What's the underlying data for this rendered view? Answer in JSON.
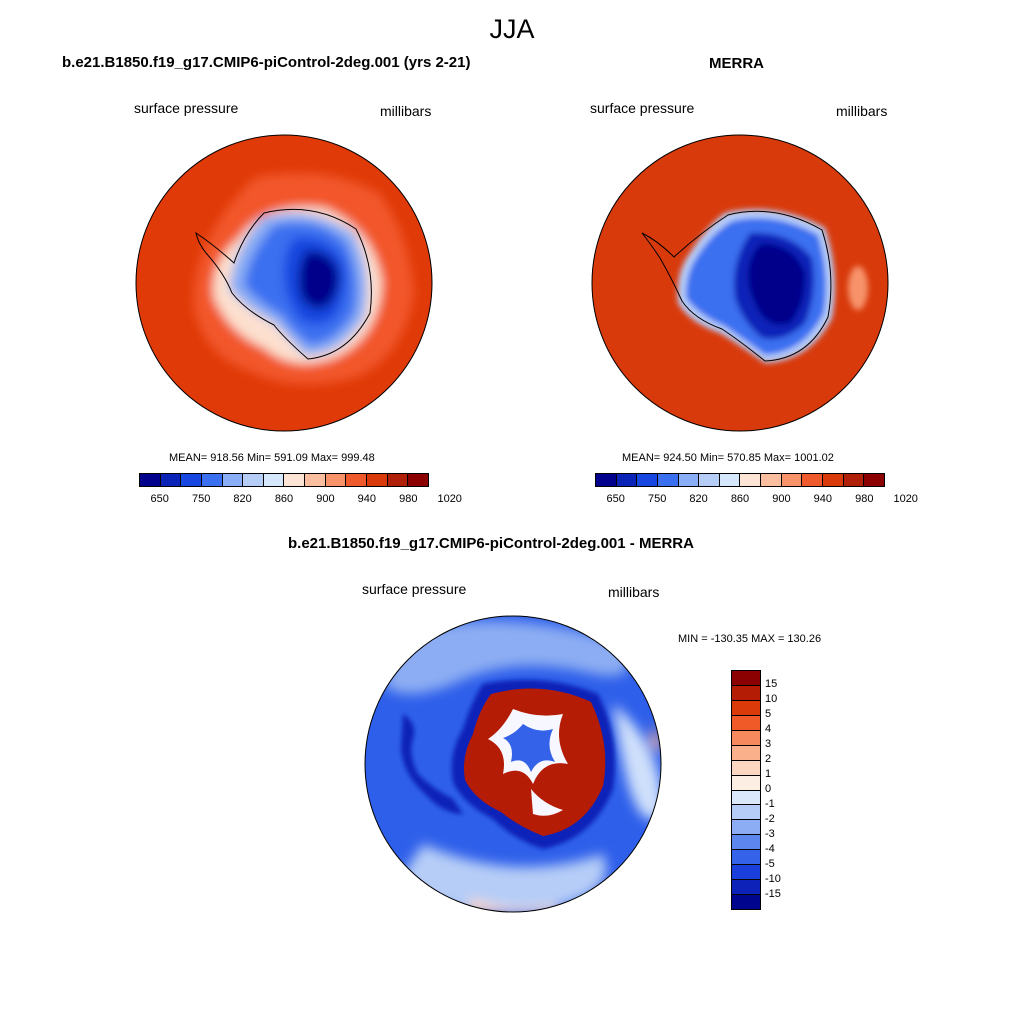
{
  "figure": {
    "title": "JJA"
  },
  "panels": {
    "left": {
      "title": "b.e21.B1850.f19_g17.CMIP6-piControl-2deg.001 (yrs 2-21)",
      "variable": "surface pressure",
      "units": "millibars",
      "stats": "MEAN= 918.56  Min= 591.09  Max= 999.48"
    },
    "right": {
      "title": "MERRA",
      "variable": "surface pressure",
      "units": "millibars",
      "stats": "MEAN= 924.50  Min= 570.85  Max= 1001.02"
    },
    "diff": {
      "title": "b.e21.B1850.f19_g17.CMIP6-piControl-2deg.001 - MERRA",
      "variable": "surface pressure",
      "units": "millibars",
      "stats": "MIN = -130.35 MAX = 130.26"
    }
  },
  "colorbar_abs": {
    "colors": [
      "#00008b",
      "#0b24b8",
      "#1747e0",
      "#3a6ff0",
      "#8aaef5",
      "#b6cdf8",
      "#d6e6fb",
      "#fde5d6",
      "#fbbfa0",
      "#f7926a",
      "#ef5a2c",
      "#d83a0c",
      "#b02008",
      "#8b0000"
    ],
    "tick_labels": [
      "650",
      "750",
      "820",
      "860",
      "900",
      "940",
      "980",
      "1020"
    ]
  },
  "colorbar_diff": {
    "colors": [
      "#8b0000",
      "#b41c06",
      "#da3a0a",
      "#f05a28",
      "#f7895e",
      "#fbb08c",
      "#fdd6c2",
      "#fdeee4",
      "#dbe8fb",
      "#b6cdf7",
      "#8cadf3",
      "#5d87ee",
      "#3462e8",
      "#1a3fdb",
      "#0c22b8",
      "#00058e"
    ],
    "tick_labels": [
      "15",
      "10",
      "5",
      "4",
      "3",
      "2",
      "1",
      "0",
      "-1",
      "-2",
      "-3",
      "-4",
      "-5",
      "-10",
      "-15"
    ]
  },
  "map_colors": {
    "ocean_model": "#e03a08",
    "ocean_high": "#f2562a",
    "ocean_merra": "#d83a0c",
    "plateau": "#00008b",
    "diff_ocean": "#2e5fea",
    "diff_light": "#cfe0fb",
    "diff_red": "#b41c06",
    "diff_dark": "#0c22b8"
  }
}
